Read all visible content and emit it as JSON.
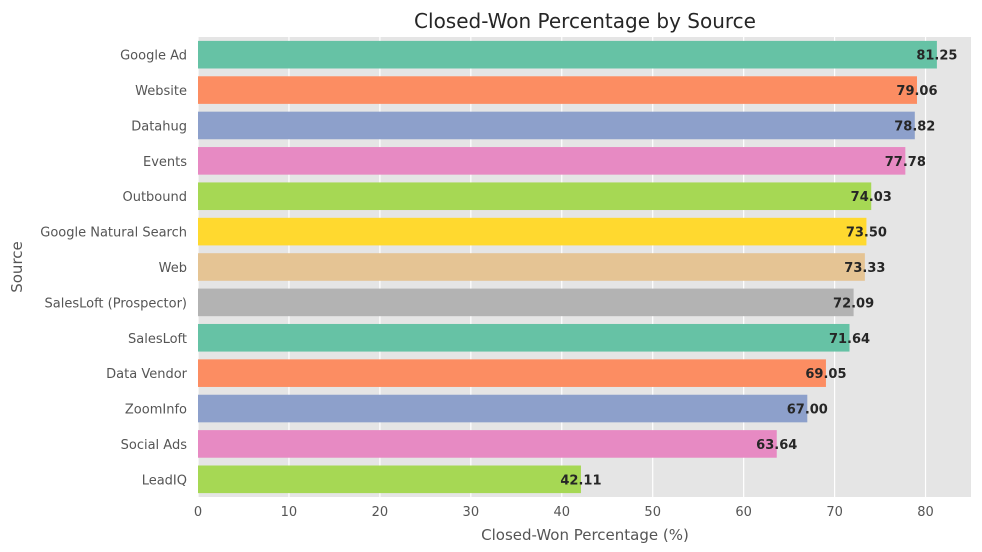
{
  "chart_data": {
    "type": "bar",
    "orientation": "horizontal",
    "title": "Closed-Won Percentage by Source",
    "xlabel": "Closed-Won Percentage (%)",
    "ylabel": "Source",
    "xlim": [
      0,
      85
    ],
    "xticks": [
      0,
      10,
      20,
      30,
      40,
      50,
      60,
      70,
      80
    ],
    "grid": true,
    "categories": [
      "Google Ad",
      "Website",
      "Datahug",
      "Events",
      "Outbound",
      "Google Natural Search",
      "Web",
      "SalesLoft (Prospector)",
      "SalesLoft",
      "Data Vendor",
      "ZoomInfo",
      "Social Ads",
      "LeadIQ"
    ],
    "values": [
      81.25,
      79.06,
      78.82,
      77.78,
      74.03,
      73.5,
      73.33,
      72.09,
      71.64,
      69.05,
      67.0,
      63.64,
      42.11
    ],
    "value_labels": [
      "81.25",
      "79.06",
      "78.82",
      "77.78",
      "74.03",
      "73.50",
      "73.33",
      "72.09",
      "71.64",
      "69.05",
      "67.00",
      "63.64",
      "42.11"
    ],
    "colors": [
      "#66c2a5",
      "#fc8d62",
      "#8da0cb",
      "#e78ac3",
      "#a6d854",
      "#ffd92f",
      "#e5c494",
      "#b3b3b3",
      "#66c2a5",
      "#fc8d62",
      "#8da0cb",
      "#e78ac3",
      "#a6d854"
    ],
    "plot_background": "#e5e5e5"
  }
}
